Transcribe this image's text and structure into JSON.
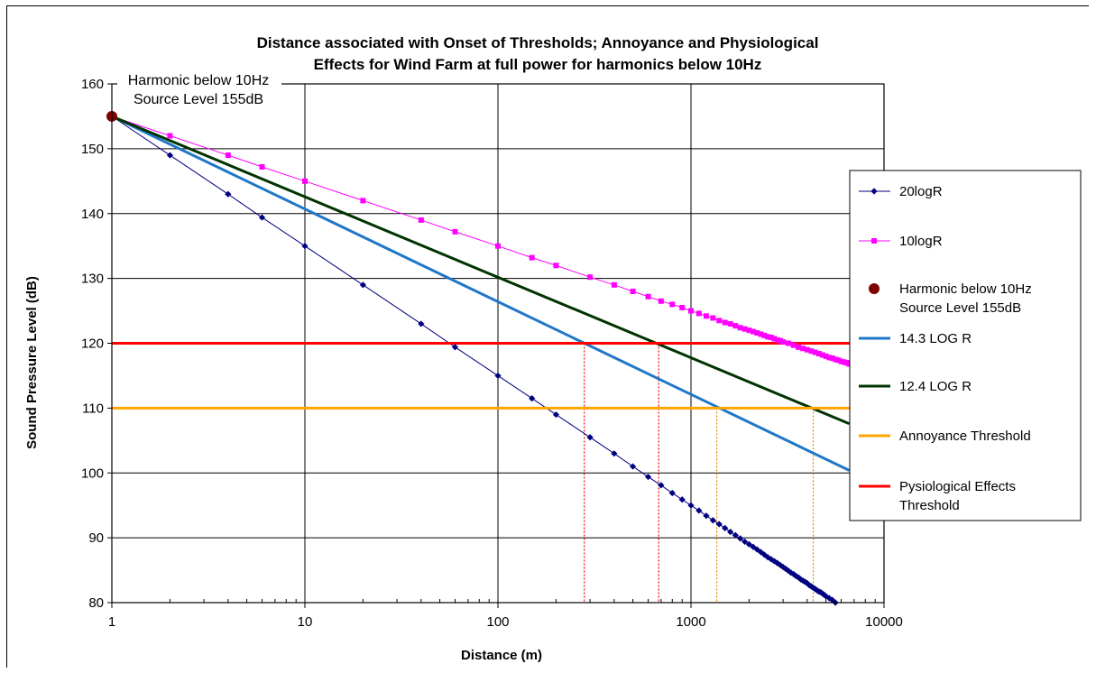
{
  "chart_data": {
    "type": "line",
    "title_lines": [
      "Distance associated with  Onset of Thresholds; Annoyance and Physiological",
      "Effects for Wind Farm at full power for harmonics below 10Hz"
    ],
    "xlabel": "Distance (m)",
    "ylabel": "Sound Pressure Level (dB)",
    "x_scale": "log",
    "xlim": [
      1,
      10000
    ],
    "ylim": [
      80,
      160
    ],
    "x_ticks": [
      "1",
      "10",
      "100",
      "1000",
      "10000"
    ],
    "y_ticks": [
      "80",
      "90",
      "100",
      "110",
      "120",
      "130",
      "140",
      "150",
      "160"
    ],
    "grid": true,
    "legend_position": "right",
    "source_level": 155,
    "series": [
      {
        "name": "20logR",
        "color": "#000080",
        "marker": "diamond",
        "formula": "155 - 20*log10(R)",
        "x": [
          1,
          2,
          4,
          6,
          10,
          20,
          40,
          60,
          100,
          150,
          200,
          300,
          400,
          500,
          600,
          700,
          800,
          900,
          1000,
          1100,
          1200,
          1300,
          1400,
          1500,
          1600,
          1700,
          1800,
          1900,
          2000,
          2100,
          2200,
          2300,
          2400,
          2500,
          2600,
          2700,
          2800,
          2900,
          3000,
          3100,
          3200,
          3300,
          3400,
          3500,
          3600,
          3700,
          3800,
          3900,
          4000,
          4100,
          4200,
          4300,
          4400,
          4500,
          4600,
          4700,
          4800,
          4900,
          5000,
          5200,
          5400,
          5600
        ],
        "values": [
          155.0,
          149.0,
          143.0,
          139.4,
          135.0,
          129.0,
          123.0,
          119.4,
          115.0,
          111.5,
          109.0,
          105.5,
          103.0,
          101.0,
          99.4,
          98.1,
          96.9,
          95.9,
          95.0,
          94.2,
          93.4,
          92.7,
          92.1,
          91.5,
          90.9,
          90.4,
          89.9,
          89.4,
          89.0,
          88.6,
          88.2,
          87.8,
          87.4,
          87.0,
          86.7,
          86.4,
          86.1,
          85.8,
          85.5,
          85.2,
          84.9,
          84.6,
          84.4,
          84.1,
          83.9,
          83.6,
          83.4,
          83.2,
          83.0,
          82.7,
          82.5,
          82.3,
          82.1,
          81.9,
          81.7,
          81.6,
          81.4,
          81.2,
          81.0,
          80.7,
          80.4,
          80.0
        ]
      },
      {
        "name": "10logR",
        "color": "#FF00FF",
        "marker": "square",
        "formula": "155 - 10*log10(R)",
        "x": [
          1,
          2,
          4,
          6,
          10,
          20,
          40,
          60,
          100,
          150,
          200,
          300,
          400,
          500,
          600,
          700,
          800,
          900,
          1000,
          1100,
          1200,
          1300,
          1400,
          1500,
          1600,
          1700,
          1800,
          1900,
          2000,
          2100,
          2200,
          2300,
          2400,
          2500,
          2600,
          2700,
          2800,
          2900,
          3000,
          3200,
          3400,
          3600,
          3800,
          4000,
          4200,
          4400,
          4600,
          4800,
          5000,
          5200,
          5400,
          5600,
          5800,
          6000,
          6200,
          6400,
          6600
        ],
        "values": [
          155.0,
          152.0,
          149.0,
          147.2,
          145.0,
          142.0,
          139.0,
          137.2,
          135.0,
          133.2,
          132.0,
          130.2,
          129.0,
          128.0,
          127.2,
          126.5,
          126.0,
          125.5,
          125.0,
          124.6,
          124.2,
          123.9,
          123.5,
          123.2,
          123.0,
          122.7,
          122.4,
          122.2,
          122.0,
          121.8,
          121.6,
          121.4,
          121.2,
          121.0,
          120.9,
          120.7,
          120.5,
          120.4,
          120.2,
          120.0,
          119.7,
          119.4,
          119.2,
          119.0,
          118.8,
          118.6,
          118.4,
          118.2,
          118.0,
          117.8,
          117.7,
          117.5,
          117.4,
          117.2,
          117.1,
          117.0,
          116.8
        ]
      },
      {
        "name": "Harmonic below 10Hz\nSource Level 155dB",
        "label_lines": [
          "Harmonic below 10Hz",
          "Source Level 155dB"
        ],
        "color": "#7F0000",
        "marker": "circle",
        "x": [
          1
        ],
        "values": [
          155
        ]
      },
      {
        "name": "14.3 LOG R",
        "color": "#1F77C8",
        "formula": "155 - 14.3*log10(R)",
        "x": [
          1,
          6600
        ],
        "values": [
          155.0,
          100.4
        ]
      },
      {
        "name": "12.4 LOG R",
        "color": "#003300",
        "formula": "155 - 12.4*log10(R)",
        "x": [
          1,
          6600
        ],
        "values": [
          155.0,
          107.6
        ]
      },
      {
        "name": "Annoyance Threshold",
        "color": "#FFA500",
        "x": [
          1,
          6600
        ],
        "values": [
          110,
          110
        ]
      },
      {
        "name": "Pysiological Effects\nThreshold",
        "label_lines": [
          "Pysiological Effects",
          "Threshold"
        ],
        "color": "#FF0000",
        "x": [
          1,
          6600
        ],
        "values": [
          120,
          120
        ]
      }
    ],
    "drop_lines": [
      {
        "x": 280,
        "from": 120,
        "color": "#FF0000"
      },
      {
        "x": 680,
        "from": 120,
        "color": "#FF0000"
      },
      {
        "x": 1360,
        "from": 110,
        "color": "#E08A00"
      },
      {
        "x": 4300,
        "from": 110,
        "color": "#E08A00"
      }
    ],
    "annotation_lines": [
      "Harmonic below 10Hz",
      "Source Level 155dB"
    ]
  }
}
